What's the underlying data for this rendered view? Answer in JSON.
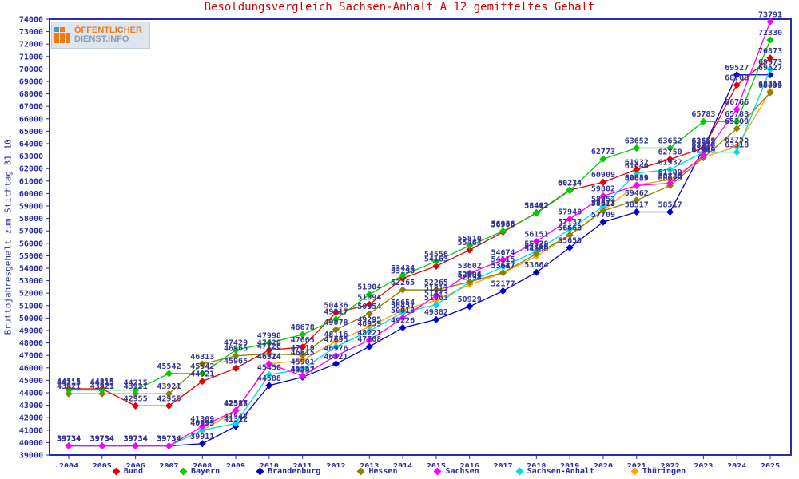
{
  "page": {
    "title": "Besoldungsvergleich Sachsen-Anhalt A 12 gemitteltes Gehalt",
    "ylabel": "Bruttojahresgehalt zum Stichtag 31.10."
  },
  "logo": {
    "line1": "ÖFFENTLICHER",
    "line2": "DIENST.INFO"
  },
  "chart_data": {
    "type": "line",
    "title": "Besoldungsvergleich Sachsen-Anhalt A 12 gemitteltes Gehalt",
    "xlabel": "",
    "ylabel": "Bruttojahresgehalt zum Stichtag 31.10.",
    "ylim": [
      39000,
      74000
    ],
    "ytick_step": 1000,
    "grid": false,
    "legend_position": "bottom",
    "axis_color": "#2a2ab0",
    "tick_label_color": "#2b2b9e",
    "point_label_color": "#333399",
    "x": [
      2004,
      2005,
      2006,
      2007,
      2008,
      2009,
      2010,
      2011,
      2012,
      2013,
      2014,
      2015,
      2016,
      2017,
      2018,
      2019,
      2020,
      2021,
      2022,
      2023,
      2024,
      2025
    ],
    "series": [
      {
        "name": "Bund",
        "color": "#e60000",
        "values": [
          44315,
          44315,
          42955,
          42955,
          44921,
          45965,
          47428,
          47665,
          50436,
          51094,
          53190,
          54163,
          55463,
          56906,
          58462,
          60274,
          60909,
          61932,
          62750,
          63655,
          68708,
          70873
        ]
      },
      {
        "name": "Bayern",
        "color": "#00cc00",
        "values": [
          44215,
          44215,
          44215,
          45542,
          45542,
          47429,
          47998,
          48678,
          49917,
          51904,
          53434,
          54556,
          55810,
          56986,
          58417,
          60234,
          62773,
          63652,
          63652,
          65783,
          65783,
          72330
        ]
      },
      {
        "name": "Brandenburg",
        "color": "#0000cc",
        "values": [
          39734,
          39734,
          39734,
          39734,
          39911,
          41312,
          44588,
          45257,
          46321,
          47708,
          49226,
          49882,
          50929,
          52177,
          53664,
          55650,
          57709,
          58517,
          58517,
          63619,
          69527,
          69527
        ]
      },
      {
        "name": "Hessen",
        "color": "#8b8000",
        "values": [
          43921,
          43921,
          43921,
          43921,
          46313,
          46965,
          47126,
          47019,
          49078,
          50354,
          52265,
          52265,
          52894,
          53647,
          55160,
          56668,
          58613,
          59462,
          60629,
          62869,
          65209,
          68099
        ]
      },
      {
        "name": "Sachsen",
        "color": "#ff00ff",
        "values": [
          39734,
          39734,
          39734,
          39734,
          41309,
          42587,
          46324,
          45357,
          46976,
          48221,
          50013,
          51813,
          53602,
          54674,
          56151,
          57948,
          59802,
          60639,
          60829,
          63055,
          66766,
          73791
        ]
      },
      {
        "name": "Sachsen-Anhalt",
        "color": "#00dbe8",
        "values": [
          39734,
          39734,
          39734,
          39734,
          40999,
          41542,
          45450,
          45901,
          47695,
          48959,
          50451,
          51063,
          52896,
          54115,
          55378,
          57137,
          58952,
          61640,
          61932,
          63318,
          63318,
          69973
        ]
      },
      {
        "name": "Thüringen",
        "color": "#ffa500",
        "values": [
          39734,
          39734,
          39734,
          39734,
          40993,
          42535,
          46314,
          46615,
          48116,
          49295,
          50654,
          51413,
          52694,
          53617,
          54960,
          56663,
          58673,
          60689,
          61109,
          62919,
          63755,
          68211
        ]
      }
    ]
  }
}
